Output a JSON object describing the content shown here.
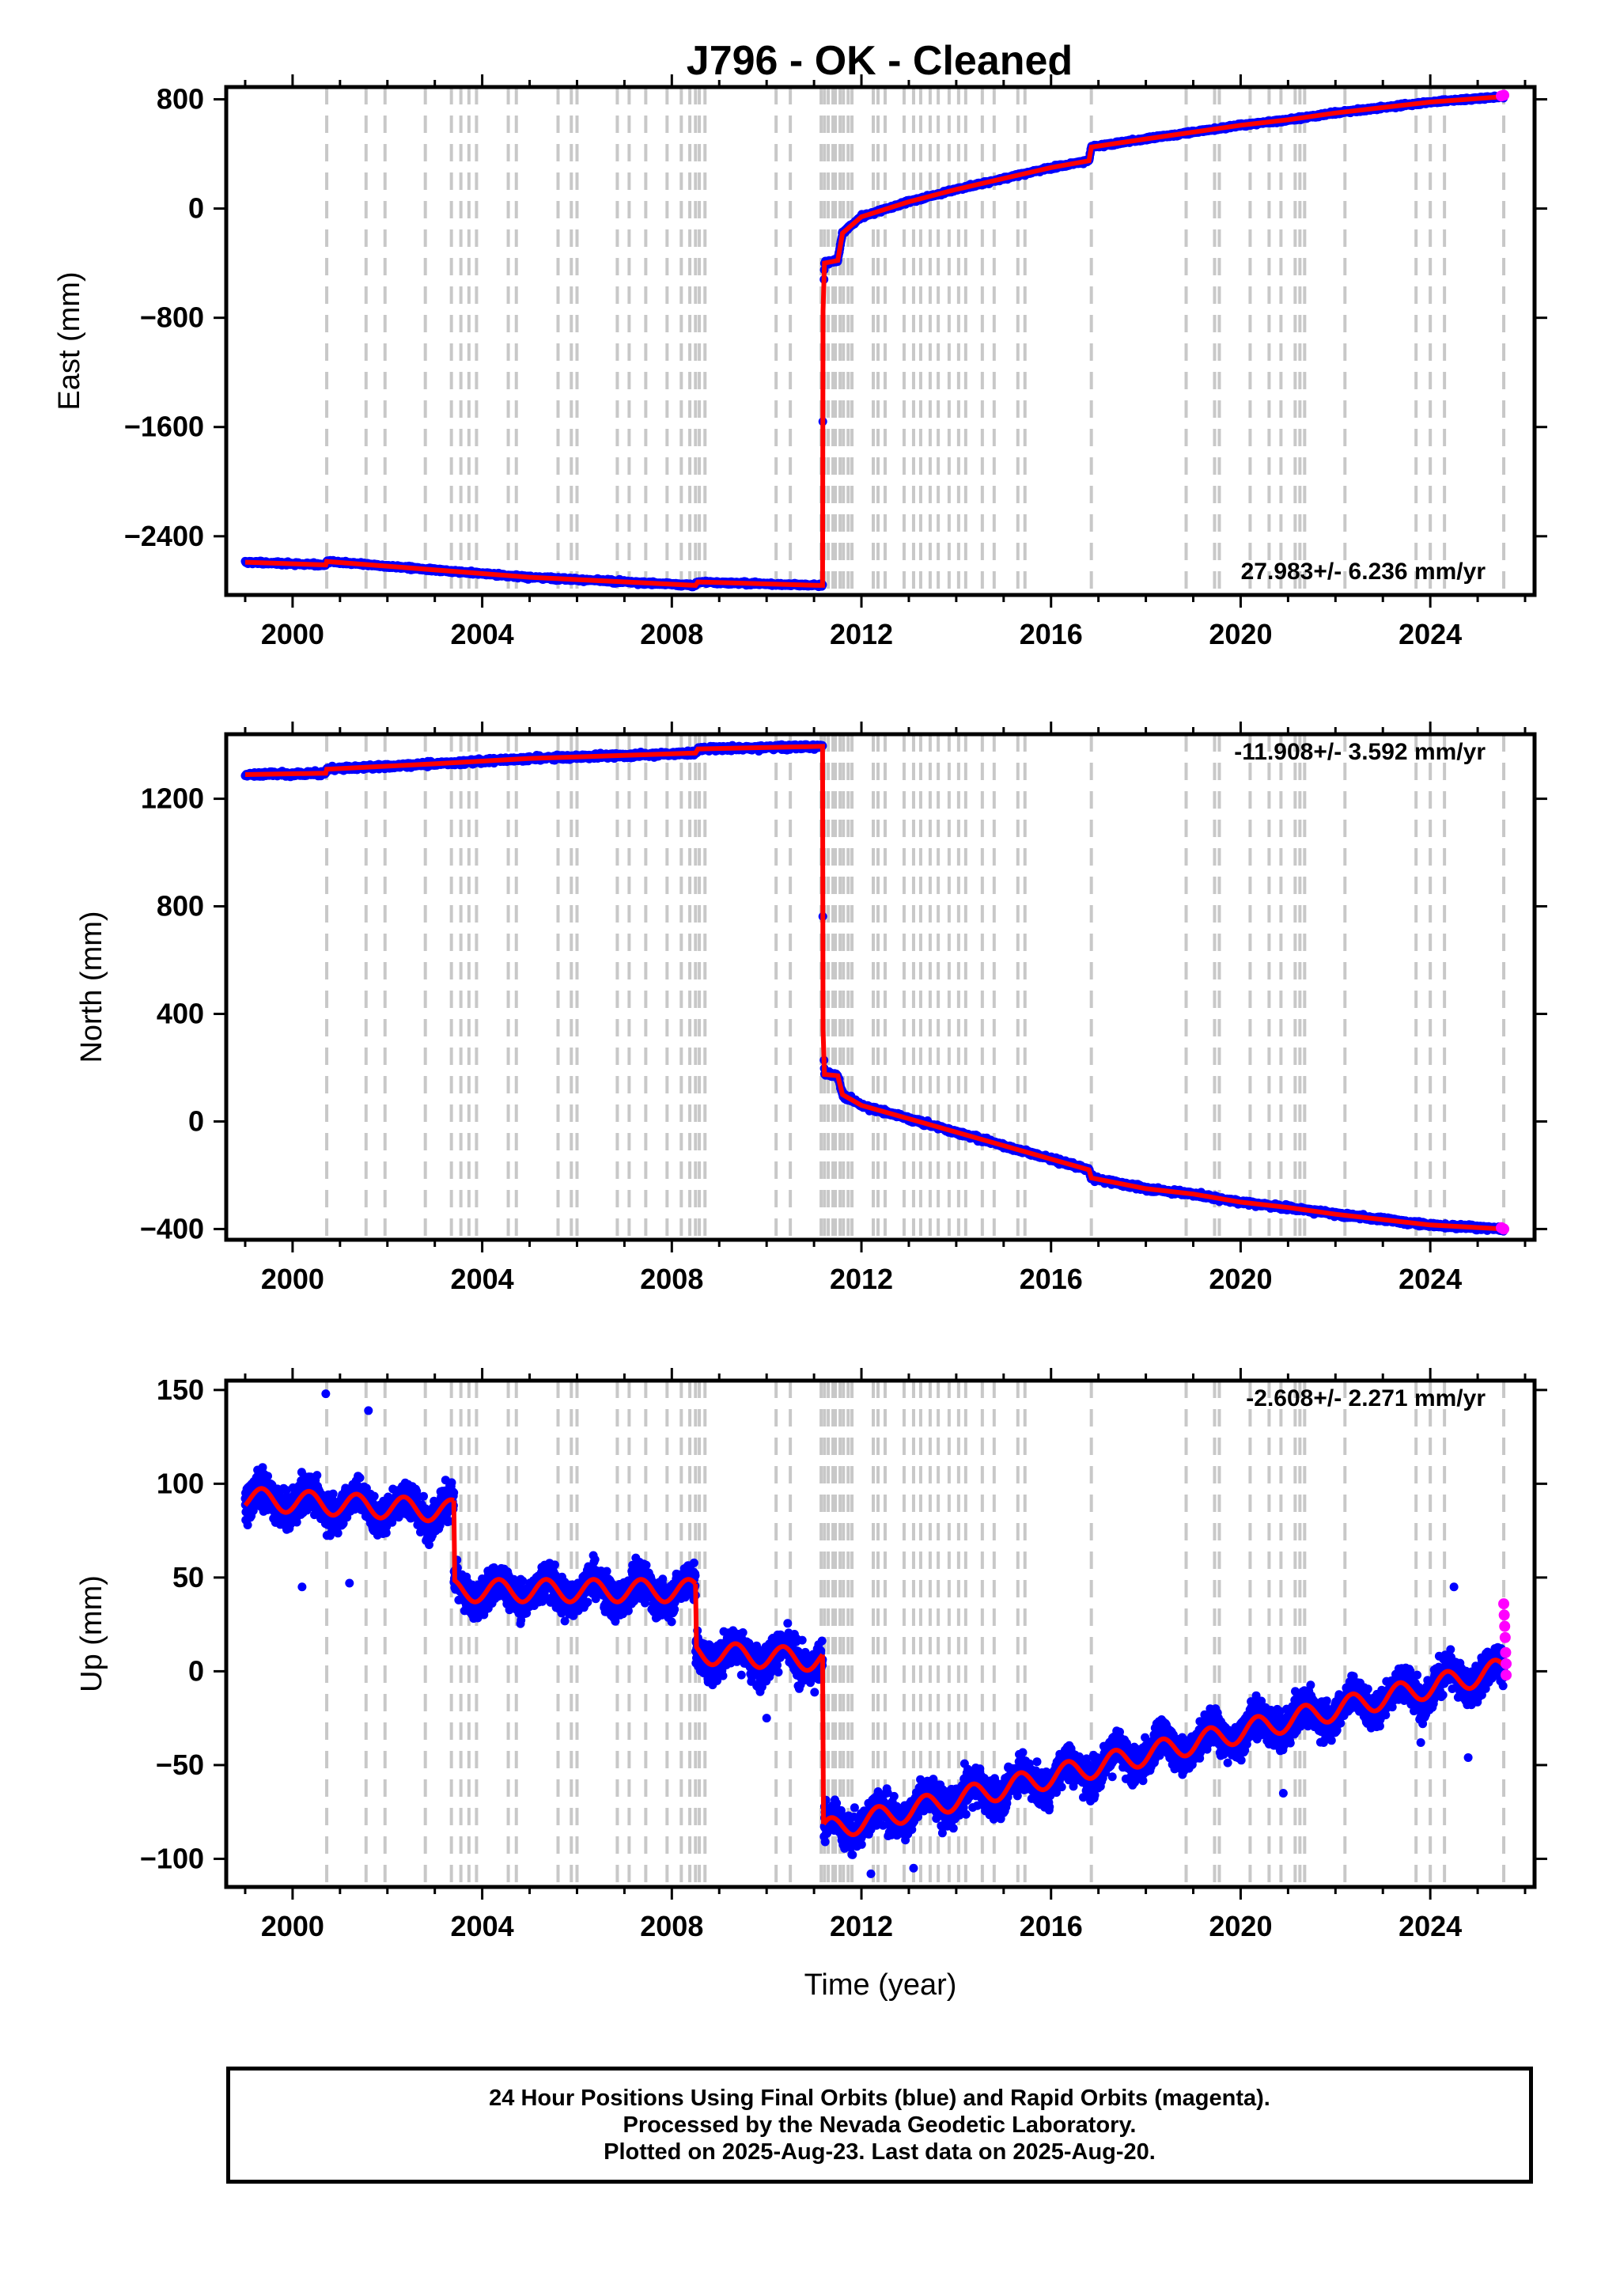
{
  "title": "J796  - OK - Cleaned",
  "colors": {
    "final": "#0000ff",
    "rapid": "#ff00ff",
    "model": "#ff0000",
    "steps": "#c8c8c8"
  },
  "chart_data": [
    {
      "type": "scatter",
      "name": "east",
      "ylabel": "East (mm)",
      "xlabel": "",
      "xlim": [
        1998.6,
        2026.2
      ],
      "ylim": [
        -2830,
        890
      ],
      "yticks": [
        800,
        0,
        -800,
        -1600,
        -2400
      ],
      "yticklabels": [
        "800",
        "0",
        "−800",
        "−1600",
        "−2400"
      ],
      "xticks": [
        2000,
        2004,
        2008,
        2012,
        2016,
        2020,
        2024
      ],
      "xticklabels": [
        "2000",
        "2004",
        "2008",
        "2012",
        "2016",
        "2020",
        "2024"
      ],
      "rate": "27.983+/- 6.236 mm/yr",
      "rate_position": "bottom-right",
      "model_points": [
        [
          1999.0,
          -2590
        ],
        [
          2000.7,
          -2610
        ],
        [
          2000.72,
          -2585
        ],
        [
          2005,
          -2700
        ],
        [
          2008.5,
          -2760
        ],
        [
          2008.55,
          -2735
        ],
        [
          2011.1,
          -2760
        ],
        [
          2011.18,
          -2760
        ],
        [
          2011.19,
          -750
        ],
        [
          2011.22,
          -400
        ],
        [
          2011.5,
          -380
        ],
        [
          2011.6,
          -180
        ],
        [
          2012.0,
          -60
        ],
        [
          2013,
          50
        ],
        [
          2014,
          140
        ],
        [
          2015,
          220
        ],
        [
          2016,
          300
        ],
        [
          2016.8,
          350
        ],
        [
          2016.85,
          450
        ],
        [
          2018,
          510
        ],
        [
          2019,
          560
        ],
        [
          2020,
          610
        ],
        [
          2021,
          650
        ],
        [
          2022,
          700
        ],
        [
          2023,
          740
        ],
        [
          2024,
          780
        ],
        [
          2025.55,
          820
        ]
      ],
      "rapid_points": [
        [
          2025.5,
          825
        ],
        [
          2025.55,
          830
        ]
      ]
    },
    {
      "type": "scatter",
      "name": "north",
      "ylabel": "North (mm)",
      "xlabel": "",
      "xlim": [
        1998.6,
        2026.2
      ],
      "ylim": [
        -440,
        1440
      ],
      "yticks": [
        1200,
        800,
        400,
        0,
        -400
      ],
      "yticklabels": [
        "1200",
        "800",
        "400",
        "0",
        "−400"
      ],
      "xticks": [
        2000,
        2004,
        2008,
        2012,
        2016,
        2020,
        2024
      ],
      "xticklabels": [
        "2000",
        "2004",
        "2008",
        "2012",
        "2016",
        "2020",
        "2024"
      ],
      "rate": "-11.908+/- 3.592 mm/yr",
      "rate_position": "top-right",
      "model_points": [
        [
          1999.0,
          1290
        ],
        [
          2000.7,
          1295
        ],
        [
          2000.72,
          1310
        ],
        [
          2003,
          1330
        ],
        [
          2005,
          1350
        ],
        [
          2008.5,
          1370
        ],
        [
          2008.55,
          1385
        ],
        [
          2011.18,
          1395
        ],
        [
          2011.19,
          340
        ],
        [
          2011.22,
          175
        ],
        [
          2011.5,
          170
        ],
        [
          2011.6,
          100
        ],
        [
          2012,
          60
        ],
        [
          2013,
          10
        ],
        [
          2014,
          -40
        ],
        [
          2015,
          -90
        ],
        [
          2016,
          -140
        ],
        [
          2016.8,
          -180
        ],
        [
          2016.85,
          -210
        ],
        [
          2018,
          -250
        ],
        [
          2019,
          -270
        ],
        [
          2020,
          -300
        ],
        [
          2021,
          -320
        ],
        [
          2022,
          -345
        ],
        [
          2023,
          -365
        ],
        [
          2024,
          -385
        ],
        [
          2025.55,
          -400
        ]
      ],
      "rapid_points": [
        [
          2025.5,
          -395
        ],
        [
          2025.55,
          -400
        ]
      ]
    },
    {
      "type": "scatter",
      "name": "up",
      "ylabel": "Up (mm)",
      "xlabel": "Time (year)",
      "xlim": [
        1998.6,
        2026.2
      ],
      "ylim": [
        -115,
        155
      ],
      "yticks": [
        150,
        100,
        50,
        0,
        -50,
        -100
      ],
      "yticklabels": [
        "150",
        "100",
        "50",
        "0",
        "−50",
        "−100"
      ],
      "xticks": [
        2000,
        2004,
        2008,
        2012,
        2016,
        2020,
        2024
      ],
      "xticklabels": [
        "2000",
        "2004",
        "2008",
        "2012",
        "2016",
        "2020",
        "2024"
      ],
      "rate": "-2.608+/- 2.271 mm/yr",
      "rate_position": "top-right",
      "model_segments": [
        {
          "start": 1999.0,
          "end": 2003.4,
          "a": 92,
          "b": -1.5
        },
        {
          "start": 2003.4,
          "end": 2008.5,
          "a": 43,
          "b": 0
        },
        {
          "start": 2008.5,
          "end": 2011.18,
          "a": 10,
          "b": -1.5
        },
        {
          "start": 2011.2,
          "end": 2025.55,
          "a": -85,
          "b": 6.0
        }
      ],
      "seasonal_amplitude": 6,
      "outliers": [
        [
          2000.7,
          148
        ],
        [
          2001.6,
          139
        ],
        [
          2000.2,
          45
        ],
        [
          2001.2,
          47
        ],
        [
          2014.5,
          -52
        ],
        [
          2018.8,
          -53
        ],
        [
          2020.9,
          -65
        ],
        [
          2023.8,
          -38
        ],
        [
          2024.8,
          -46
        ],
        [
          2024.5,
          45
        ],
        [
          2012.2,
          -108
        ],
        [
          2013.1,
          -105
        ],
        [
          2010.0,
          -25
        ]
      ],
      "rapid_points": [
        [
          2025.55,
          36
        ],
        [
          2025.56,
          30
        ],
        [
          2025.57,
          24
        ],
        [
          2025.58,
          18
        ],
        [
          2025.59,
          10
        ],
        [
          2025.6,
          4
        ],
        [
          2025.6,
          -2
        ]
      ]
    }
  ],
  "step_epochs": [
    2000.72,
    2001.55,
    2001.95,
    2002.8,
    2003.35,
    2003.55,
    2003.72,
    2003.88,
    2004.55,
    2004.72,
    2005.6,
    2005.88,
    2006.0,
    2006.85,
    2007.1,
    2007.45,
    2007.9,
    2008.2,
    2008.38,
    2008.5,
    2008.58,
    2008.7,
    2010.2,
    2010.5,
    2011.15,
    2011.22,
    2011.3,
    2011.4,
    2011.45,
    2011.55,
    2011.62,
    2011.72,
    2011.8,
    2012.25,
    2012.35,
    2012.5,
    2012.9,
    2013.1,
    2013.25,
    2013.45,
    2013.62,
    2013.85,
    2014.05,
    2014.2,
    2014.55,
    2014.8,
    2015.3,
    2015.45,
    2016.85,
    2018.85,
    2019.45,
    2019.55,
    2020.2,
    2020.6,
    2020.85,
    2021.15,
    2021.25,
    2021.35,
    2022.2,
    2023.7,
    2024.0,
    2024.3,
    2025.55
  ],
  "caption": {
    "line1": "24 Hour Positions Using Final Orbits (blue) and Rapid Orbits (magenta).",
    "line2": "Processed by the Nevada Geodetic Laboratory.",
    "line3": "Plotted on 2025-Aug-23. Last data on 2025-Aug-20."
  }
}
